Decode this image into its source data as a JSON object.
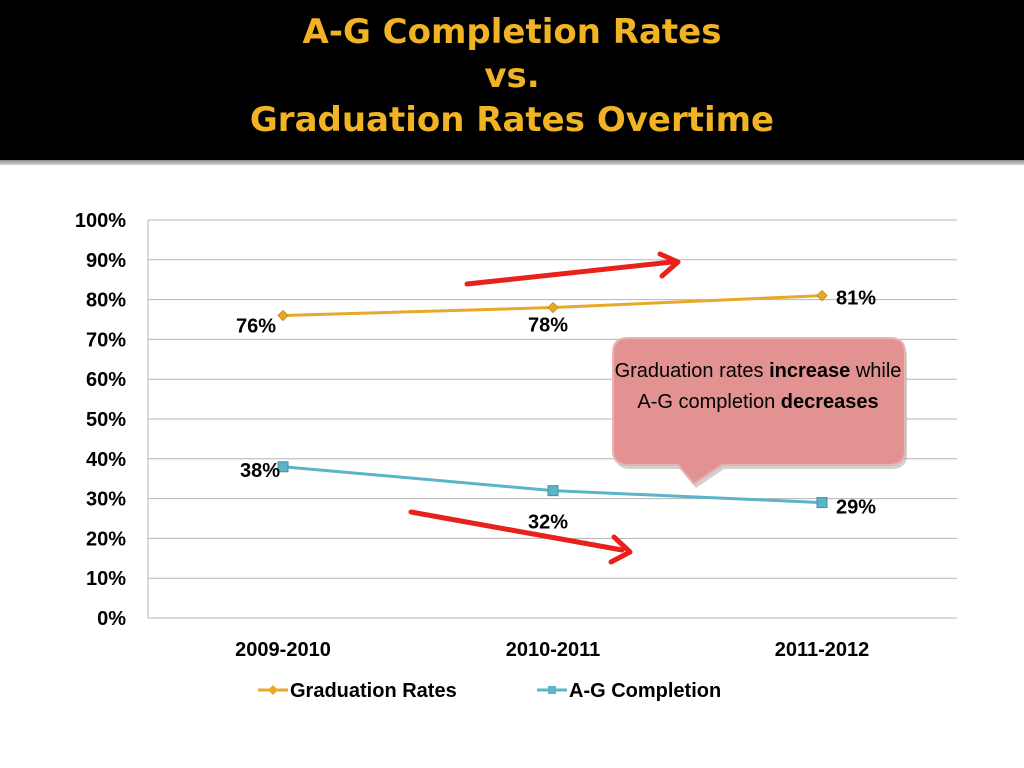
{
  "title": {
    "line1": "A-G Completion Rates",
    "line2": "vs.",
    "line3": "Graduation Rates Overtime",
    "color": "#f0b323"
  },
  "callout": {
    "text_pre": "Graduation rates ",
    "text_bold1": "increase",
    "text_mid": " while A-G completion ",
    "text_bold2": "decreases",
    "fill": "#e39292",
    "stroke": "#e8b3b3"
  },
  "chart_data": {
    "type": "line",
    "categories": [
      "2009-2010",
      "2010-2011",
      "2011-2012"
    ],
    "series": [
      {
        "name": "Graduation Rates",
        "values": [
          76,
          78,
          81
        ],
        "labels": [
          "76%",
          "78%",
          "81%"
        ],
        "color": "#e8a92b",
        "marker": "diamond"
      },
      {
        "name": "A-G Completion",
        "values": [
          38,
          32,
          29
        ],
        "labels": [
          "38%",
          "32%",
          "29%"
        ],
        "color": "#5cb4c9",
        "marker": "square"
      }
    ],
    "y_ticks": [
      "0%",
      "10%",
      "20%",
      "30%",
      "40%",
      "50%",
      "60%",
      "70%",
      "80%",
      "90%",
      "100%"
    ],
    "ylim": [
      0,
      100
    ],
    "grid": true,
    "legend_position": "bottom",
    "annotation_arrows": [
      "up-right",
      "down-right"
    ],
    "arrow_color": "#e8221b"
  }
}
